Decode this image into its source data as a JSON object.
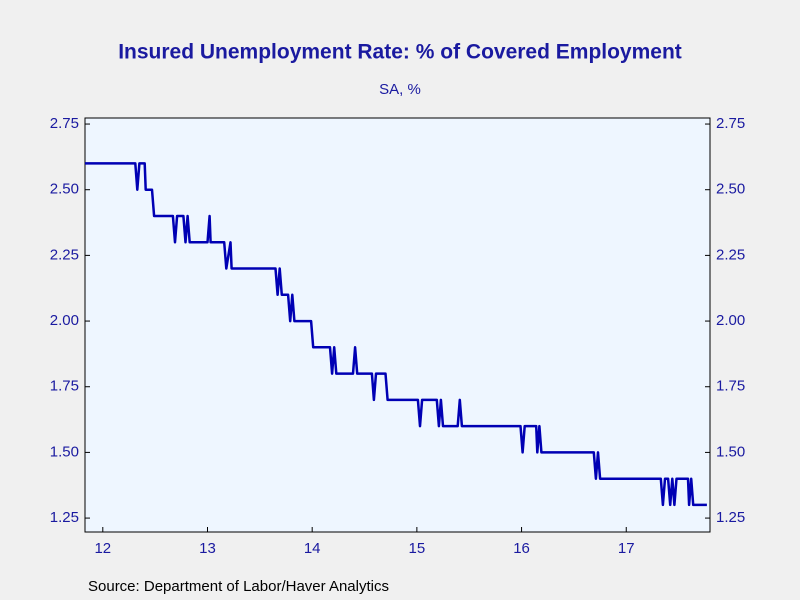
{
  "chart_data": {
    "type": "line",
    "title": "Insured Unemployment Rate: % of Covered Employment",
    "subtitle": "SA, %",
    "source": "Source:  Department of Labor/Haver Analytics",
    "color": "#0000b4",
    "x": [
      2012.33,
      2012.81,
      2012.83,
      2012.85,
      2012.9,
      2012.91,
      2012.97,
      2012.99,
      2013.17,
      2013.19,
      2013.21,
      2013.27,
      2013.29,
      2013.31,
      2013.33,
      2013.5,
      2013.52,
      2013.53,
      2013.66,
      2013.68,
      2013.72,
      2013.73,
      2014.15,
      2014.17,
      2014.19,
      2014.21,
      2014.27,
      2014.29,
      2014.31,
      2014.33,
      2014.49,
      2014.51,
      2014.67,
      2014.69,
      2014.71,
      2014.73,
      2014.89,
      2014.91,
      2014.93,
      2015.07,
      2015.09,
      2015.11,
      2015.2,
      2015.22,
      2015.51,
      2015.53,
      2015.55,
      2015.69,
      2015.71,
      2015.73,
      2015.75,
      2015.89,
      2015.91,
      2015.93,
      2016.49,
      2016.51,
      2016.53,
      2016.64,
      2016.65,
      2016.67,
      2016.69,
      2017.19,
      2017.21,
      2017.23,
      2017.25,
      2017.83,
      2017.85,
      2017.87,
      2017.9,
      2017.92,
      2017.94,
      2017.96,
      2017.98,
      2018.09,
      2018.1,
      2018.12,
      2018.14,
      2018.27
    ],
    "values": [
      2.6,
      2.6,
      2.5,
      2.6,
      2.6,
      2.5,
      2.5,
      2.4,
      2.4,
      2.3,
      2.4,
      2.4,
      2.3,
      2.4,
      2.3,
      2.3,
      2.4,
      2.3,
      2.3,
      2.2,
      2.3,
      2.2,
      2.2,
      2.1,
      2.2,
      2.1,
      2.1,
      2.0,
      2.1,
      2.0,
      2.0,
      1.9,
      1.9,
      1.8,
      1.9,
      1.8,
      1.8,
      1.9,
      1.8,
      1.8,
      1.7,
      1.8,
      1.8,
      1.7,
      1.7,
      1.6,
      1.7,
      1.7,
      1.6,
      1.7,
      1.6,
      1.6,
      1.7,
      1.6,
      1.6,
      1.5,
      1.6,
      1.6,
      1.5,
      1.6,
      1.5,
      1.5,
      1.4,
      1.5,
      1.4,
      1.4,
      1.3,
      1.4,
      1.4,
      1.3,
      1.4,
      1.3,
      1.4,
      1.4,
      1.3,
      1.4,
      1.3,
      1.3
    ],
    "xlim": [
      2012.33,
      2018.3
    ],
    "xticks": [
      {
        "value": 2012.5,
        "label": "12"
      },
      {
        "value": 2013.5,
        "label": "13"
      },
      {
        "value": 2014.5,
        "label": "14"
      },
      {
        "value": 2015.5,
        "label": "15"
      },
      {
        "value": 2016.5,
        "label": "16"
      },
      {
        "value": 2017.5,
        "label": "17"
      }
    ],
    "ylim": [
      1.197,
      2.773
    ],
    "yticks": [
      {
        "value": 1.25,
        "label": "1.25"
      },
      {
        "value": 1.5,
        "label": "1.50"
      },
      {
        "value": 1.75,
        "label": "1.75"
      },
      {
        "value": 2.0,
        "label": "2.00"
      },
      {
        "value": 2.25,
        "label": "2.25"
      },
      {
        "value": 2.5,
        "label": "2.50"
      },
      {
        "value": 2.75,
        "label": "2.75"
      }
    ]
  }
}
